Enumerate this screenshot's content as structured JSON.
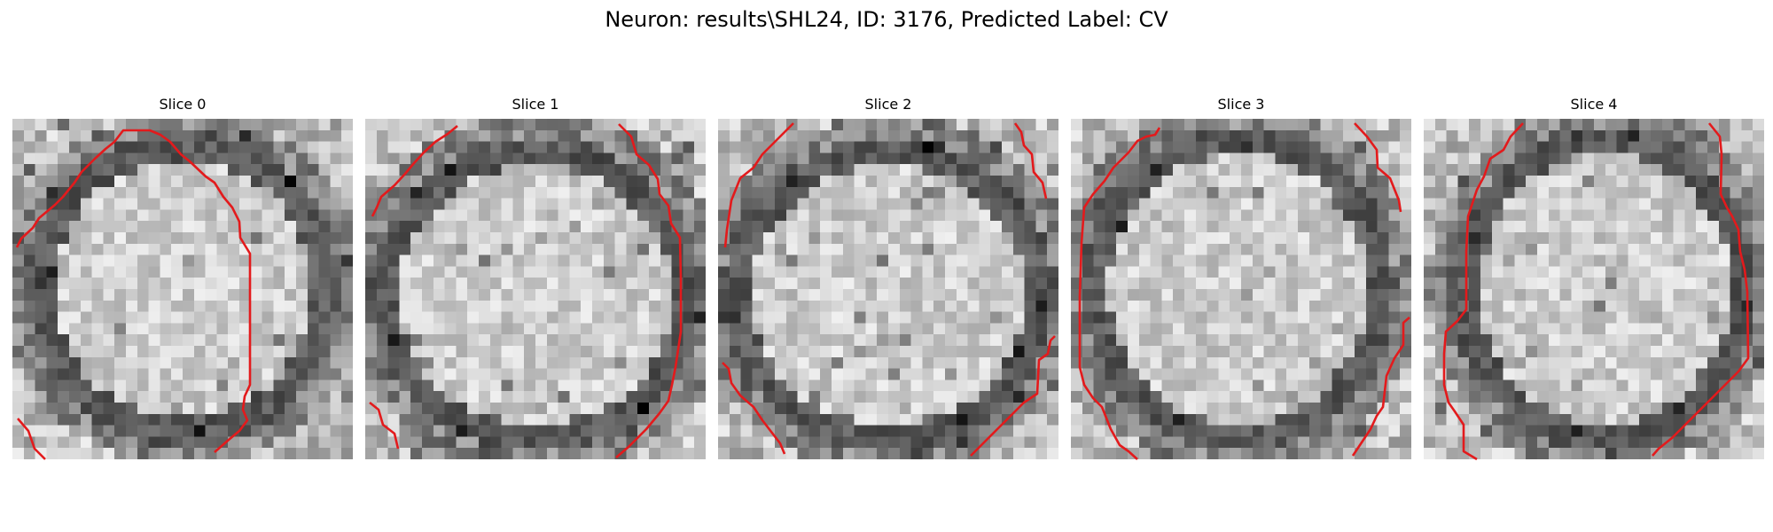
{
  "figure": {
    "suptitle": "Neuron: results\\SHL24, ID: 3176, Predicted Label: CV"
  },
  "panels": [
    {
      "title": "Slice 0"
    },
    {
      "title": "Slice 1"
    },
    {
      "title": "Slice 2"
    },
    {
      "title": "Slice 3"
    },
    {
      "title": "Slice 4"
    }
  ],
  "colors": {
    "contour": "#e31a1c",
    "colormap": "gray"
  }
}
